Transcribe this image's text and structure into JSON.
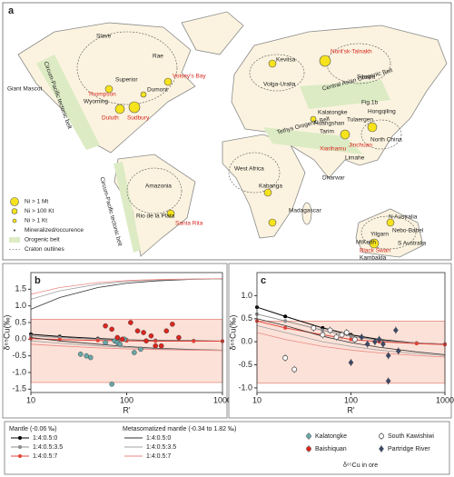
{
  "map": {
    "panel": "a",
    "labels": [
      "Slave",
      "Rae",
      "Superior",
      "Wyoming",
      "Thompson",
      "Duluth",
      "Sudbury",
      "Dumont",
      "Voisey's Bay",
      "Giant Mascot",
      "Circum-Pacific tectonic belt",
      "Circum-Pacific tectonic belt",
      "Amazonia",
      "Rio de la Plata",
      "Santa Rita",
      "Kevitsa",
      "Noril'sk-Talnakh",
      "Siberia",
      "Volga-Uralia",
      "Central Asian Orogenic Belt",
      "Fig.1b",
      "Kalatongke",
      "Huangshan",
      "Tarim",
      "Tulaergen",
      "Hongqiling",
      "North China",
      "Xiarihamu",
      "Jinchuan",
      "Tethys Orogenic Belt",
      "Limahe",
      "West Africa",
      "Kabanga",
      "Madagascar",
      "Dharwar",
      "N Australia",
      "Yilgarn",
      "Nebo-Babel",
      "MtKeith",
      "Black Swan",
      "Kambalda",
      "S Australia"
    ],
    "legend": [
      "Ni > 1 Mt",
      "Ni > 100 Kt",
      "Ni > 1 Kt",
      "Mineralized/occurence",
      "Orogenic belt",
      "Craton outlines"
    ]
  },
  "chart_data": [
    {
      "type": "line",
      "panel": "b",
      "ylabel": "δ⁶⁵Cu(‰)",
      "xlabel": "R'",
      "xscale": "log",
      "xlim": [
        10,
        1000
      ],
      "xticks": [
        10,
        100,
        1000
      ],
      "ylim": [
        -1.6,
        2.0
      ],
      "yticks": [
        -1.5,
        {
          "value": -1,
          "label": "-1.0"
        },
        -0.5,
        {
          "value": 0,
          "label": "0.0"
        },
        0.5,
        {
          "value": 1,
          "label": "1.0"
        },
        1.5
      ],
      "shaded_range": [
        -1.3,
        0.6
      ],
      "shade_color": "#fbe1d8",
      "x": [
        10,
        20,
        50,
        100,
        200,
        500,
        1000
      ],
      "series": [
        {
          "name": "1:4:0.5:0",
          "color": "#000000",
          "markers": true,
          "values": [
            0.15,
            0.08,
            0.02,
            -0.02,
            -0.04,
            -0.05,
            -0.06
          ]
        },
        {
          "name": "1:4:0.5:3.5",
          "color": "#8c8c8c",
          "markers": true,
          "values": [
            0.1,
            0.05,
            0,
            -0.03,
            -0.05,
            -0.06,
            -0.06
          ]
        },
        {
          "name": "1:4:0.5:7",
          "color": "#e0443a",
          "markers": true,
          "values": [
            0.02,
            -0.01,
            -0.04,
            -0.05,
            -0.06,
            -0.06,
            -0.06
          ]
        },
        {
          "name": "1:4:0.5:0",
          "color": "#333333",
          "markers": false,
          "values": [
            0.9,
            1.25,
            1.55,
            1.68,
            1.75,
            1.8,
            1.81
          ]
        },
        {
          "name": "1:4:0.5:3.5",
          "color": "#a0a0a0",
          "markers": false,
          "values": [
            1.2,
            1.45,
            1.65,
            1.73,
            1.78,
            1.8,
            1.81
          ]
        },
        {
          "name": "1:4:0.5:7",
          "color": "#ec8a84",
          "markers": false,
          "values": [
            1.35,
            1.55,
            1.7,
            1.76,
            1.79,
            1.81,
            1.82
          ]
        },
        {
          "color": "#333333",
          "markers": false,
          "values": [
            0.05,
            -0.05,
            -0.15,
            -0.22,
            -0.27,
            -0.31,
            -0.33
          ]
        },
        {
          "color": "#a0a0a0",
          "markers": false,
          "values": [
            -0.05,
            -0.12,
            -0.2,
            -0.25,
            -0.29,
            -0.32,
            -0.33
          ]
        },
        {
          "color": "#ec8a84",
          "markers": false,
          "values": [
            -0.15,
            -0.2,
            -0.26,
            -0.29,
            -0.31,
            -0.33,
            -0.34
          ]
        }
      ],
      "samples": [
        {
          "name": "Kalatongke",
          "color": "#6aa6a6",
          "marker": "circle",
          "x": [
            33,
            38,
            42,
            60,
            70,
            75,
            80,
            85,
            95,
            120,
            140
          ],
          "values": [
            -0.45,
            -0.5,
            -0.55,
            -0.1,
            -1.35,
            -0.05,
            -0.1,
            -0.15,
            0.0,
            -0.4,
            -0.3
          ],
          "errors": [
            0.08,
            0.08,
            0.08,
            0.06,
            0.06,
            0.06,
            0.06,
            0.06,
            0.06,
            0.06,
            0.06
          ]
        },
        {
          "name": "Baishiquan",
          "color": "#d8261f",
          "marker": "circle",
          "x": [
            60,
            70,
            80,
            90,
            110,
            130,
            150,
            160,
            180,
            200,
            230,
            260,
            300,
            350
          ],
          "values": [
            0.4,
            0.3,
            0.05,
            0.0,
            0.5,
            0.25,
            0.2,
            -0.05,
            0.1,
            -0.2,
            -0.2,
            0.25,
            0.45,
            0.05
          ],
          "errors": [
            0.06,
            0.06,
            0.06,
            0.06,
            0.06,
            0.06,
            0.06,
            0.06,
            0.06,
            0.06,
            0.06,
            0.06,
            0.06,
            0.06
          ]
        }
      ]
    },
    {
      "type": "line",
      "panel": "c",
      "ylabel": "δ⁶⁵Cu(‰)",
      "xlabel": "R'",
      "xscale": "log",
      "xlim": [
        10,
        1000
      ],
      "xticks": [
        10,
        100,
        1000
      ],
      "ylim": [
        -1.1,
        1.5
      ],
      "yticks": [
        {
          "value": -1,
          "label": "-1.0"
        },
        -0.5,
        {
          "value": 0,
          "label": "0.0"
        },
        0.5,
        {
          "value": 1,
          "label": "1.0"
        }
      ],
      "shaded_range": [
        -0.9,
        0.45
      ],
      "shade_color": "#fbe1d8",
      "x": [
        10,
        20,
        50,
        100,
        200,
        500,
        1000
      ],
      "series": [
        {
          "color": "#000000",
          "markers": true,
          "values": [
            0.75,
            0.55,
            0.3,
            0.15,
            0.05,
            -0.03,
            -0.05
          ]
        },
        {
          "color": "#8c8c8c",
          "markers": true,
          "values": [
            0.6,
            0.45,
            0.25,
            0.12,
            0.03,
            -0.03,
            -0.05
          ]
        },
        {
          "color": "#e0443a",
          "markers": true,
          "values": [
            0.45,
            0.3,
            0.15,
            0.05,
            0,
            -0.04,
            -0.06
          ]
        },
        {
          "color": "#333333",
          "markers": false,
          "values": [
            0.5,
            0.35,
            0.12,
            -0.02,
            -0.12,
            -0.22,
            -0.28
          ]
        },
        {
          "color": "#a0a0a0",
          "markers": false,
          "values": [
            0.35,
            0.2,
            0,
            -0.1,
            -0.18,
            -0.26,
            -0.3
          ]
        },
        {
          "color": "#ec8a84",
          "markers": false,
          "values": [
            0.2,
            0.05,
            -0.1,
            -0.18,
            -0.24,
            -0.3,
            -0.33
          ]
        }
      ],
      "samples": [
        {
          "name": "South Kawishiwi",
          "color": "#555555",
          "marker": "open",
          "x": [
            20,
            25,
            40,
            50,
            60,
            70,
            80,
            90,
            110
          ],
          "values": [
            -0.35,
            -0.6,
            0.3,
            0.15,
            0.25,
            0.1,
            0.15,
            0.2,
            0.05
          ],
          "errors": [
            0.08,
            0.08,
            0.08,
            0.08,
            0.08,
            0.08,
            0.08,
            0.08,
            0.08
          ]
        },
        {
          "name": "Partridge River",
          "color": "#3d4a6b",
          "marker": "diamond",
          "x": [
            100,
            130,
            150,
            180,
            200,
            220,
            250,
            250,
            300,
            320
          ],
          "values": [
            -0.45,
            0.1,
            -0.05,
            0.0,
            0.05,
            -0.05,
            -0.3,
            -0.85,
            0.25,
            -0.2
          ],
          "errors": [
            0.08,
            0.08,
            0.08,
            0.08,
            0.08,
            0.08,
            0.08,
            0.08,
            0.08,
            0.08
          ]
        }
      ]
    }
  ],
  "legend": {
    "mantle": "Mantle (-0.06 ‰)",
    "metasomatized": "Metasomatized mantle (-0.34 to 1.82 ‰)",
    "note": "δ⁶⁵Cu in ore"
  }
}
